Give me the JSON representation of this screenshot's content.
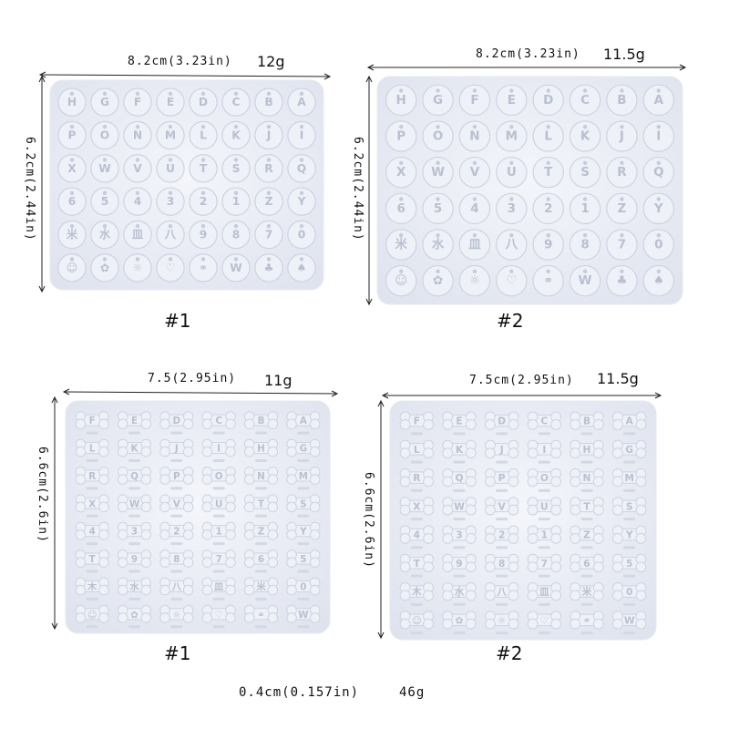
{
  "molds": [
    {
      "id": "top-left",
      "width_label": "8.2cm(3.23in)",
      "weight": "12g",
      "height_label": "6.2cm(2.44in)",
      "number": "#1",
      "shape": "shell",
      "rows": [
        [
          "H",
          "G",
          "F",
          "E",
          "D",
          "C",
          "B",
          "A"
        ],
        [
          "P",
          "O",
          "N",
          "M",
          "L",
          "K",
          "J",
          "I"
        ],
        [
          "X",
          "W",
          "V",
          "U",
          "T",
          "S",
          "R",
          "Q"
        ],
        [
          "6",
          "5",
          "4",
          "3",
          "2",
          "1",
          "Z",
          "Y"
        ],
        [
          "米",
          "水",
          "皿",
          "八",
          "9",
          "8",
          "7",
          "0"
        ],
        [
          "☺",
          "✿",
          "☼",
          "♡",
          "⚭",
          "W",
          "♣",
          "♠"
        ]
      ]
    },
    {
      "id": "top-right",
      "width_label": "8.2cm(3.23in)",
      "weight": "11.5g",
      "height_label": "6.2cm(2.44in)",
      "number": "#2",
      "shape": "shell",
      "rows": [
        [
          "H",
          "G",
          "F",
          "E",
          "D",
          "C",
          "B",
          "A"
        ],
        [
          "P",
          "O",
          "N",
          "M",
          "L",
          "K",
          "J",
          "I"
        ],
        [
          "X",
          "W",
          "V",
          "U",
          "T",
          "S",
          "R",
          "Q"
        ],
        [
          "6",
          "5",
          "4",
          "3",
          "2",
          "1",
          "Z",
          "Y"
        ],
        [
          "米",
          "水",
          "皿",
          "八",
          "9",
          "8",
          "7",
          "0"
        ],
        [
          "☺",
          "✿",
          "☼",
          "♡",
          "⚭",
          "W",
          "♣",
          "♠"
        ]
      ]
    },
    {
      "id": "bottom-left",
      "width_label": "7.5(2.95in)",
      "weight": "11g",
      "height_label": "6.6cm(2.6in)",
      "number": "#1",
      "shape": "bone",
      "rows": [
        [
          "F",
          "E",
          "D",
          "C",
          "B",
          "A"
        ],
        [
          "L",
          "K",
          "J",
          "I",
          "H",
          "G"
        ],
        [
          "R",
          "Q",
          "P",
          "O",
          "N",
          "M"
        ],
        [
          "X",
          "W",
          "V",
          "U",
          "T",
          "S"
        ],
        [
          "4",
          "3",
          "2",
          "1",
          "Z",
          "Y"
        ],
        [
          "T",
          "9",
          "8",
          "7",
          "6",
          "5"
        ],
        [
          "木",
          "水",
          "八",
          "皿",
          "米",
          "0"
        ],
        [
          "☺",
          "✿",
          "☼",
          "♡",
          "⚭",
          "W"
        ]
      ]
    },
    {
      "id": "bottom-right",
      "width_label": "7.5cm(2.95in)",
      "weight": "11.5g",
      "height_label": "6.6cm(2.6in)",
      "number": "#2",
      "shape": "bone",
      "rows": [
        [
          "F",
          "E",
          "D",
          "C",
          "B",
          "A"
        ],
        [
          "L",
          "K",
          "J",
          "I",
          "H",
          "G"
        ],
        [
          "R",
          "Q",
          "P",
          "O",
          "N",
          "M"
        ],
        [
          "X",
          "W",
          "V",
          "U",
          "T",
          "S"
        ],
        [
          "4",
          "3",
          "2",
          "1",
          "Z",
          "Y"
        ],
        [
          "T",
          "9",
          "8",
          "7",
          "6",
          "5"
        ],
        [
          "木",
          "水",
          "八",
          "皿",
          "米",
          "0"
        ],
        [
          "☺",
          "✿",
          "☼",
          "♡",
          "⚭",
          "W"
        ]
      ]
    }
  ],
  "footer": {
    "thickness": "0.4cm(0.157in)",
    "total_weight": "46g"
  }
}
